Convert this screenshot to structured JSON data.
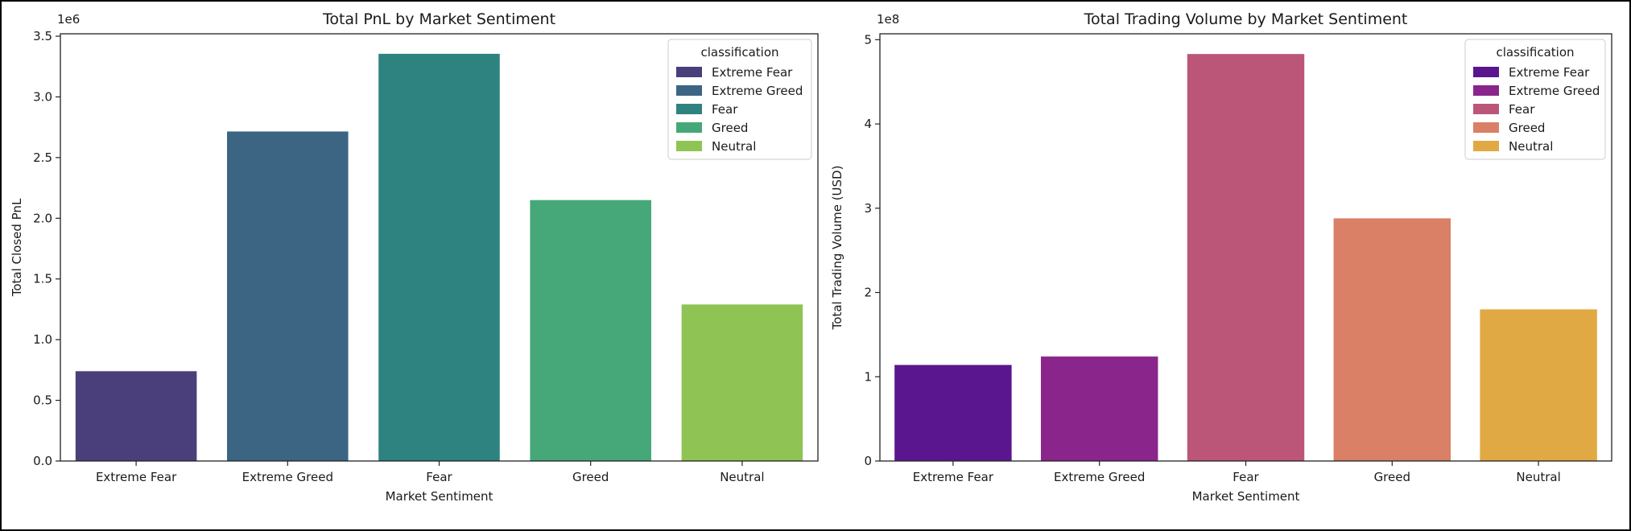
{
  "chart_data": [
    {
      "type": "bar",
      "title": "Total PnL by Market Sentiment",
      "xlabel": "Market Sentiment",
      "ylabel": "Total Closed PnL",
      "y_offset_label": "1e6",
      "categories": [
        "Extreme Fear",
        "Extreme Greed",
        "Fear",
        "Greed",
        "Neutral"
      ],
      "values": [
        740000,
        2715000,
        3355000,
        2150000,
        1290000
      ],
      "ylim": [
        0,
        3520000
      ],
      "yticks": [
        0,
        500000,
        1000000,
        1500000,
        2000000,
        2500000,
        3000000,
        3500000
      ],
      "ytick_labels": [
        "0.0",
        "0.5",
        "1.0",
        "1.5",
        "2.0",
        "2.5",
        "3.0",
        "3.5"
      ],
      "colors": [
        "#4a3f7a",
        "#3c6584",
        "#2e8280",
        "#46a878",
        "#8fc455"
      ],
      "legend": {
        "title": "classification",
        "placement": "top-right",
        "entries": [
          "Extreme Fear",
          "Extreme Greed",
          "Fear",
          "Greed",
          "Neutral"
        ]
      },
      "grid": false
    },
    {
      "type": "bar",
      "title": "Total Trading Volume by Market Sentiment",
      "xlabel": "Market Sentiment",
      "ylabel": "Total Trading Volume (USD)",
      "y_offset_label": "1e8",
      "categories": [
        "Extreme Fear",
        "Extreme Greed",
        "Fear",
        "Greed",
        "Neutral"
      ],
      "values": [
        114000000,
        124000000,
        483000000,
        288000000,
        180000000
      ],
      "ylim": [
        0,
        507000000
      ],
      "yticks": [
        0,
        100000000,
        200000000,
        300000000,
        400000000,
        500000000
      ],
      "ytick_labels": [
        "0",
        "1",
        "2",
        "3",
        "4",
        "5"
      ],
      "colors": [
        "#5a168e",
        "#8a258b",
        "#bc5679",
        "#d98066",
        "#e1a944"
      ],
      "legend": {
        "title": "classification",
        "placement": "top-right",
        "entries": [
          "Extreme Fear",
          "Extreme Greed",
          "Fear",
          "Greed",
          "Neutral"
        ]
      },
      "grid": false
    }
  ]
}
